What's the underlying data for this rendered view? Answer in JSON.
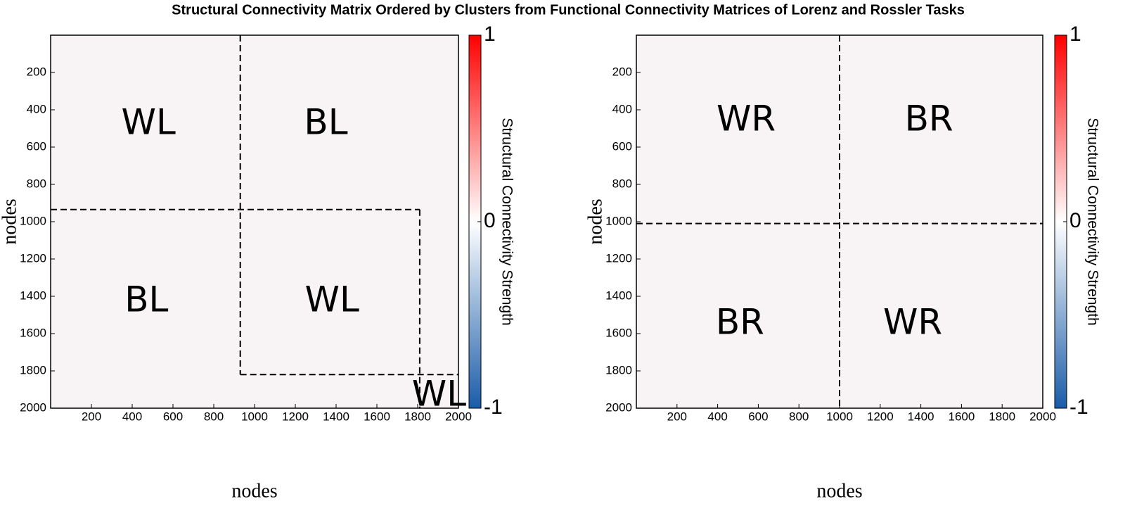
{
  "title": "Structural Connectivity Matrix Ordered by Clusters from Functional Connectivity Matrices of Lorenz and Rossler Tasks",
  "chart_data": [
    {
      "type": "heatmap",
      "xlabel": "nodes",
      "ylabel": "nodes",
      "xlim": [
        0,
        2000
      ],
      "ylim": [
        0,
        2000
      ],
      "y_inverted": true,
      "xticks": [
        200,
        400,
        600,
        800,
        1000,
        1200,
        1400,
        1600,
        1800,
        2000
      ],
      "yticks": [
        200,
        400,
        600,
        800,
        1000,
        1200,
        1400,
        1600,
        1800,
        2000
      ],
      "clim": [
        -1,
        1
      ],
      "cticks": [
        -1,
        0,
        1
      ],
      "colormap": [
        "#1a5ca8",
        "#ffffff",
        "#ff0000"
      ],
      "colorbar_label": "Structural Connectivity Strength",
      "dividers": [
        {
          "x": [
            930,
            930
          ],
          "y": [
            0,
            1820
          ]
        },
        {
          "x": [
            0,
            1810
          ],
          "y": [
            935,
            935
          ]
        },
        {
          "x": [
            930,
            2000
          ],
          "y": [
            1820,
            1820
          ]
        },
        {
          "x": [
            1810,
            1810
          ],
          "y": [
            935,
            2000
          ]
        }
      ],
      "annotations": [
        {
          "text": "WL",
          "x": 480,
          "y": 480,
          "size": "large"
        },
        {
          "text": "BL",
          "x": 1350,
          "y": 480,
          "size": "large"
        },
        {
          "text": "BL",
          "x": 470,
          "y": 1430,
          "size": "large"
        },
        {
          "text": "WL",
          "x": 1380,
          "y": 1430,
          "size": "large"
        },
        {
          "text": "WL",
          "x": 1905,
          "y": 1935,
          "size": "small"
        }
      ]
    },
    {
      "type": "heatmap",
      "xlabel": "nodes",
      "ylabel": "nodes",
      "xlim": [
        0,
        2000
      ],
      "ylim": [
        0,
        2000
      ],
      "y_inverted": true,
      "xticks": [
        200,
        400,
        600,
        800,
        1000,
        1200,
        1400,
        1600,
        1800,
        2000
      ],
      "yticks": [
        200,
        400,
        600,
        800,
        1000,
        1200,
        1400,
        1600,
        1800,
        2000
      ],
      "clim": [
        -1,
        1
      ],
      "cticks": [
        -1,
        0,
        1
      ],
      "colormap": [
        "#1a5ca8",
        "#ffffff",
        "#ff0000"
      ],
      "colorbar_label": "Structural Connectivity Strength",
      "dividers": [
        {
          "x": [
            1000,
            1000
          ],
          "y": [
            0,
            2000
          ]
        },
        {
          "x": [
            0,
            2000
          ],
          "y": [
            1010,
            1010
          ]
        }
      ],
      "annotations": [
        {
          "text": "WR",
          "x": 540,
          "y": 460,
          "size": "large"
        },
        {
          "text": "BR",
          "x": 1440,
          "y": 460,
          "size": "large"
        },
        {
          "text": "BR",
          "x": 510,
          "y": 1550,
          "size": "large"
        },
        {
          "text": "WR",
          "x": 1360,
          "y": 1550,
          "size": "large"
        }
      ]
    }
  ]
}
